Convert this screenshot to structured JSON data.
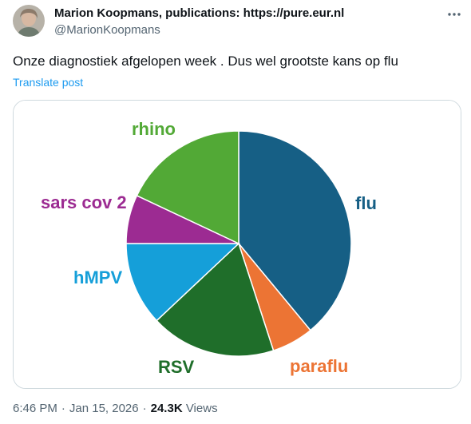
{
  "author": {
    "name": "Marion Koopmans, publications: https://pure.eur.nl",
    "handle": "@MarionKoopmans"
  },
  "tweet": {
    "text": "Onze diagnostiek afgelopen week . Dus wel grootste kans op flu",
    "translate_label": "Translate post"
  },
  "meta": {
    "time": "6:46 PM",
    "separator": "·",
    "date": "Jan 15, 2026",
    "views_count": "24.3K",
    "views_label": "Views"
  },
  "icons": {
    "more": "more-horizontal-icon"
  },
  "chart_data": {
    "type": "pie",
    "slices": [
      {
        "label": "flu",
        "value": 39,
        "color": "#165f85"
      },
      {
        "label": "paraflu",
        "value": 6,
        "color": "#ec7434"
      },
      {
        "label": "RSV",
        "value": 18,
        "color": "#1f6e2a"
      },
      {
        "label": "hMPV",
        "value": 12,
        "color": "#159fd9"
      },
      {
        "label": "sars cov 2",
        "value": 7,
        "color": "#9c2b92"
      },
      {
        "label": "rhino",
        "value": 18,
        "color": "#52a936"
      }
    ]
  }
}
